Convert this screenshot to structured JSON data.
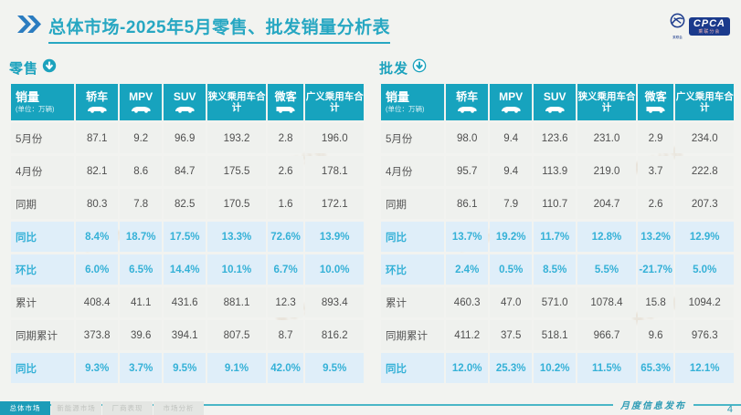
{
  "header": {
    "title": "总体市场-2025年5月零售、批发销量分析表",
    "logo": {
      "text": "CPCA",
      "subtext": "乘联分会",
      "emblem_caption": "乘联会"
    }
  },
  "table_columns": {
    "sales_label": "销量",
    "sales_unit": "(单位：万辆)",
    "cols": [
      {
        "label": "轿车",
        "icon": "car"
      },
      {
        "label": "MPV",
        "icon": "car"
      },
      {
        "label": "SUV",
        "icon": "car"
      },
      {
        "label": "狭义乘用车合计",
        "icon": null
      },
      {
        "label": "微客",
        "icon": "van"
      },
      {
        "label": "广义乘用车合计",
        "icon": null
      }
    ]
  },
  "tables": [
    {
      "name": "retail",
      "section_label": "零售",
      "rows": [
        {
          "label": "5月份",
          "type": "normal",
          "values": [
            "87.1",
            "9.2",
            "96.9",
            "193.2",
            "2.8",
            "196.0"
          ]
        },
        {
          "label": "4月份",
          "type": "normal",
          "values": [
            "82.1",
            "8.6",
            "84.7",
            "175.5",
            "2.6",
            "178.1"
          ]
        },
        {
          "label": "同期",
          "type": "normal",
          "values": [
            "80.3",
            "7.8",
            "82.5",
            "170.5",
            "1.6",
            "172.1"
          ]
        },
        {
          "label": "同比",
          "type": "pct",
          "values": [
            "8.4%",
            "18.7%",
            "17.5%",
            "13.3%",
            "72.6%",
            "13.9%"
          ]
        },
        {
          "label": "环比",
          "type": "pct",
          "values": [
            "6.0%",
            "6.5%",
            "14.4%",
            "10.1%",
            "6.7%",
            "10.0%"
          ]
        },
        {
          "label": "累计",
          "type": "normal",
          "values": [
            "408.4",
            "41.1",
            "431.6",
            "881.1",
            "12.3",
            "893.4"
          ]
        },
        {
          "label": "同期累计",
          "type": "normal",
          "values": [
            "373.8",
            "39.6",
            "394.1",
            "807.5",
            "8.7",
            "816.2"
          ]
        },
        {
          "label": "同比",
          "type": "pct",
          "values": [
            "9.3%",
            "3.7%",
            "9.5%",
            "9.1%",
            "42.0%",
            "9.5%"
          ]
        }
      ]
    },
    {
      "name": "wholesale",
      "section_label": "批发",
      "rows": [
        {
          "label": "5月份",
          "type": "normal",
          "values": [
            "98.0",
            "9.4",
            "123.6",
            "231.0",
            "2.9",
            "234.0"
          ]
        },
        {
          "label": "4月份",
          "type": "normal",
          "values": [
            "95.7",
            "9.4",
            "113.9",
            "219.0",
            "3.7",
            "222.8"
          ]
        },
        {
          "label": "同期",
          "type": "normal",
          "values": [
            "86.1",
            "7.9",
            "110.7",
            "204.7",
            "2.6",
            "207.3"
          ]
        },
        {
          "label": "同比",
          "type": "pct",
          "values": [
            "13.7%",
            "19.2%",
            "11.7%",
            "12.8%",
            "13.2%",
            "12.9%"
          ]
        },
        {
          "label": "环比",
          "type": "pct",
          "values": [
            "2.4%",
            "0.5%",
            "8.5%",
            "5.5%",
            "-21.7%",
            "5.0%"
          ]
        },
        {
          "label": "累计",
          "type": "normal",
          "values": [
            "460.3",
            "47.0",
            "571.0",
            "1078.4",
            "15.8",
            "1094.2"
          ]
        },
        {
          "label": "同期累计",
          "type": "normal",
          "values": [
            "411.2",
            "37.5",
            "518.1",
            "966.7",
            "9.6",
            "976.3"
          ]
        },
        {
          "label": "同比",
          "type": "pct",
          "values": [
            "12.0%",
            "25.3%",
            "10.2%",
            "11.5%",
            "65.3%",
            "12.1%"
          ]
        }
      ]
    }
  ],
  "watermark": {
    "text": "乘联分会"
  },
  "footer": {
    "ribbon_label": "月度信息发布",
    "page_number": "4",
    "tabs": [
      {
        "label": "总体市场"
      },
      {
        "label": "新能源市场"
      },
      {
        "label": "厂商表现"
      },
      {
        "label": "市场分析"
      }
    ]
  },
  "colors": {
    "accent_teal": "#17a3be",
    "title_teal": "#27a7c2",
    "chevron_blue": "#2b7cc0",
    "pct_text": "#35b1d7",
    "pct_bg": "#dfeef9",
    "logo_navy": "#1b3a8c"
  }
}
